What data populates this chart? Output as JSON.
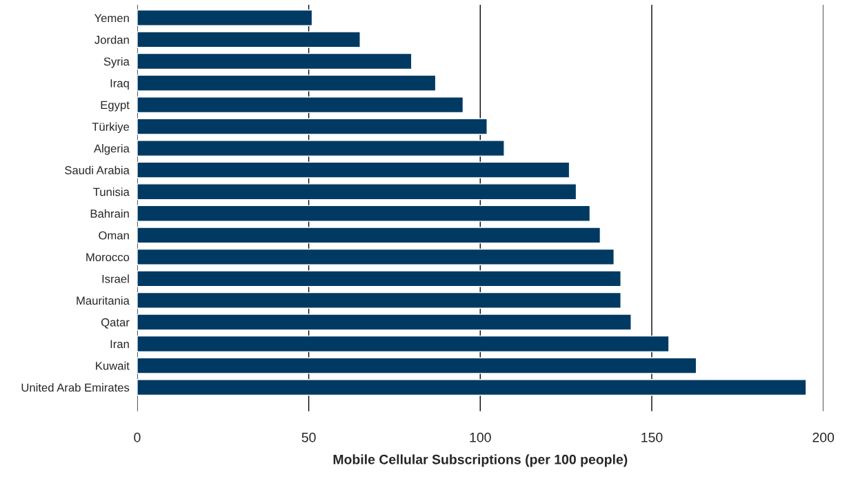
{
  "chart_data": {
    "type": "bar",
    "orientation": "horizontal",
    "xlabel": "Mobile Cellular Subscriptions (per 100 people)",
    "categories": [
      "Yemen",
      "Jordan",
      "Syria",
      "Iraq",
      "Egypt",
      "Türkiye",
      "Algeria",
      "Saudi Arabia",
      "Tunisia",
      "Bahrain",
      "Oman",
      "Morocco",
      "Israel",
      "Mauritania",
      "Qatar",
      "Iran",
      "Kuwait",
      "United Arab Emirates"
    ],
    "values": [
      51,
      65,
      80,
      87,
      95,
      102,
      107,
      126,
      128,
      132,
      135,
      139,
      141,
      141,
      144,
      155,
      163,
      195
    ],
    "color": "#003a63",
    "xlim": [
      0,
      200
    ],
    "xticks": [
      0,
      50,
      100,
      150,
      200
    ],
    "grid": "x"
  }
}
